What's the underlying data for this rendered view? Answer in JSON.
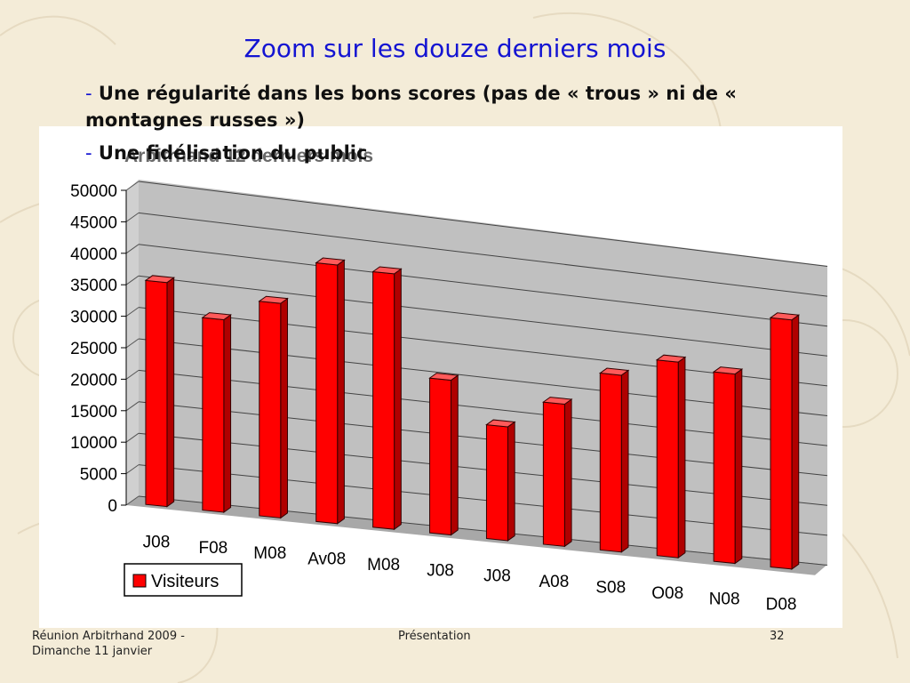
{
  "slide": {
    "title": "Zoom sur les douze derniers mois",
    "bullets": [
      {
        "dash": "-",
        "text": "Une régularité dans les bons scores (pas de « trous » ni de « montagnes russes »)"
      },
      {
        "dash": "-",
        "text": "Une fidélisation du public"
      }
    ],
    "footer": {
      "left_line1": "Réunion Arbitrhand 2009 -",
      "left_line2": "Dimanche 11 janvier",
      "center": "Présentation",
      "page": "32"
    }
  },
  "colors": {
    "title": "#1414d2",
    "bar_front": "#ff0000",
    "bar_top": "#ff5a5a",
    "bar_side": "#b00000",
    "wall": "#c0c0c0",
    "floor": "#a8a8a8",
    "background": "#f4ecd8"
  },
  "chart_data": {
    "type": "bar",
    "style": "3d",
    "title": "Arbitrhand 12 derniers mois",
    "categories": [
      "J08",
      "F08",
      "M08",
      "Av08",
      "M08",
      "J08",
      "J08",
      "A08",
      "S08",
      "O08",
      "N08",
      "D08"
    ],
    "series": [
      {
        "name": "Visiteurs",
        "values": [
          36000,
          31000,
          34500,
          41500,
          41000,
          25000,
          18500,
          23000,
          28500,
          31500,
          30500,
          40000
        ]
      }
    ],
    "ylim": [
      0,
      50000
    ],
    "yticks": [
      "50000",
      "45000",
      "40000",
      "35000",
      "30000",
      "25000",
      "20000",
      "15000",
      "10000",
      "5000",
      "0"
    ],
    "tick_values": [
      50000,
      45000,
      40000,
      35000,
      30000,
      25000,
      20000,
      15000,
      10000,
      5000,
      0
    ],
    "grid": true,
    "legend": "bottom-left"
  }
}
